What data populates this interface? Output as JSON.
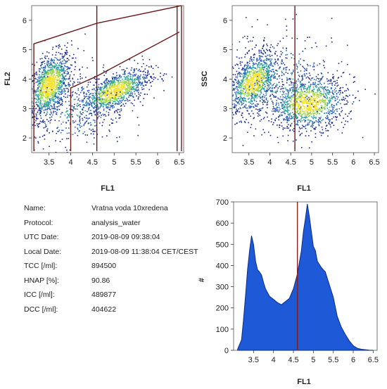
{
  "colors": {
    "gate": "#6b1a1a",
    "plot_bg": "#ffffff",
    "density_low": "#1a2c8f",
    "density_mid": "#2aa59a",
    "density_high": "#f5e12a",
    "histogram_fill": "#1e5ad8",
    "histogram_edge": "#0a2b8c",
    "marker": "#8a1c1c"
  },
  "chart_data": [
    {
      "id": "fl1-fl2",
      "type": "scatter",
      "title": "",
      "xlabel": "FL1",
      "ylabel": "FL2",
      "xlim": [
        3.1,
        6.6
      ],
      "ylim": [
        1.5,
        6.5
      ],
      "xticks": [
        "3.5",
        "4",
        "4.5",
        "5",
        "5.5",
        "6",
        "6.5"
      ],
      "yticks": [
        "2",
        "3",
        "4",
        "5",
        "6"
      ],
      "grid": false,
      "populations": [
        {
          "center": [
            3.5,
            3.8
          ],
          "spread": [
            0.25,
            0.5
          ],
          "slope": 1.0,
          "weight": 0.45
        },
        {
          "center": [
            5.0,
            3.6
          ],
          "spread": [
            0.4,
            0.3
          ],
          "slope": 0.6,
          "weight": 0.4
        },
        {
          "center": [
            4.1,
            3.0
          ],
          "spread": [
            0.6,
            0.7
          ],
          "slope": 0.2,
          "weight": 0.15
        }
      ],
      "gates": [
        {
          "name": "gate-upper-polygon",
          "points": [
            [
              3.15,
              1.55
            ],
            [
              3.15,
              5.2
            ],
            [
              4.6,
              5.9
            ],
            [
              6.55,
              6.5
            ]
          ]
        },
        {
          "name": "gate-vertical-4",
          "points": [
            [
              4.0,
              1.55
            ],
            [
              4.0,
              3.7
            ],
            [
              4.6,
              4.1
            ]
          ]
        },
        {
          "name": "gate-vertical-4-6",
          "points": [
            [
              4.6,
              1.55
            ],
            [
              4.6,
              6.5
            ]
          ]
        },
        {
          "name": "gate-lower-diagonal",
          "points": [
            [
              4.6,
              4.1
            ],
            [
              6.5,
              5.6
            ]
          ]
        },
        {
          "name": "gate-right-vertical",
          "points": [
            [
              6.45,
              1.55
            ],
            [
              6.45,
              6.5
            ]
          ]
        },
        {
          "name": "gate-right-vertical-2",
          "points": [
            [
              6.55,
              1.55
            ],
            [
              6.55,
              6.5
            ]
          ]
        }
      ]
    },
    {
      "id": "fl1-ssc",
      "type": "scatter",
      "title": "",
      "xlabel": "FL1",
      "ylabel": "SSC",
      "xlim": [
        3.1,
        6.6
      ],
      "ylim": [
        1.5,
        6.5
      ],
      "xticks": [
        "3.5",
        "4",
        "4.5",
        "5",
        "5.5",
        "6",
        "6.5"
      ],
      "yticks": [
        "2",
        "3",
        "4",
        "5",
        "6"
      ],
      "grid": false,
      "populations": [
        {
          "center": [
            3.6,
            3.9
          ],
          "spread": [
            0.3,
            0.45
          ],
          "slope": 0.8,
          "weight": 0.4
        },
        {
          "center": [
            4.9,
            3.2
          ],
          "spread": [
            0.45,
            0.45
          ],
          "slope": 0.1,
          "weight": 0.45
        },
        {
          "center": [
            4.3,
            3.9
          ],
          "spread": [
            0.8,
            0.9
          ],
          "slope": 0.0,
          "weight": 0.15
        }
      ],
      "gates": [
        {
          "name": "gate-vertical-4-6",
          "points": [
            [
              4.6,
              1.55
            ],
            [
              4.6,
              6.5
            ]
          ]
        }
      ]
    },
    {
      "id": "fl1-histogram",
      "type": "area",
      "title": "",
      "xlabel": "FL1",
      "ylabel": "#",
      "xlim": [
        3.0,
        6.6
      ],
      "ylim": [
        0,
        700
      ],
      "xticks": [
        "3.5",
        "4",
        "4.5",
        "5",
        "5.5",
        "6",
        "6.5"
      ],
      "yticks": [
        "0",
        "100",
        "200",
        "300",
        "400",
        "500",
        "600",
        "700"
      ],
      "grid": false,
      "x": [
        3.1,
        3.2,
        3.25,
        3.3,
        3.35,
        3.4,
        3.45,
        3.5,
        3.55,
        3.6,
        3.65,
        3.7,
        3.75,
        3.8,
        3.9,
        4.0,
        4.1,
        4.2,
        4.3,
        4.4,
        4.5,
        4.6,
        4.7,
        4.75,
        4.8,
        4.85,
        4.9,
        4.95,
        5.0,
        5.05,
        5.1,
        5.2,
        5.3,
        5.4,
        5.5,
        5.6,
        5.7,
        5.8,
        5.9,
        6.0,
        6.1,
        6.2,
        6.3,
        6.4,
        6.5
      ],
      "y": [
        5,
        50,
        150,
        260,
        380,
        470,
        540,
        500,
        420,
        380,
        370,
        355,
        320,
        290,
        255,
        240,
        225,
        215,
        230,
        245,
        290,
        360,
        470,
        560,
        620,
        690,
        630,
        560,
        490,
        470,
        420,
        390,
        370,
        310,
        250,
        160,
        110,
        75,
        45,
        22,
        10,
        5,
        3,
        1,
        0
      ],
      "marker_x": 4.6
    }
  ],
  "info": {
    "rows": [
      {
        "key": "Name:",
        "value": "Vratna voda 10xredena"
      },
      {
        "key": "Protocol:",
        "value": "analysis_water"
      },
      {
        "key": "UTC Date:",
        "value": "2019-08-09 09:38:04"
      },
      {
        "key": "Local Date:",
        "value": "2019-08-09 11:38:04 CET/CEST"
      },
      {
        "key": "TCC [/ml]:",
        "value": "894500"
      },
      {
        "key": "HNAP [%]:",
        "value": "90.86"
      },
      {
        "key": "ICC [/ml]:",
        "value": "489877"
      },
      {
        "key": "DCC [/ml]:",
        "value": "404622"
      }
    ]
  }
}
